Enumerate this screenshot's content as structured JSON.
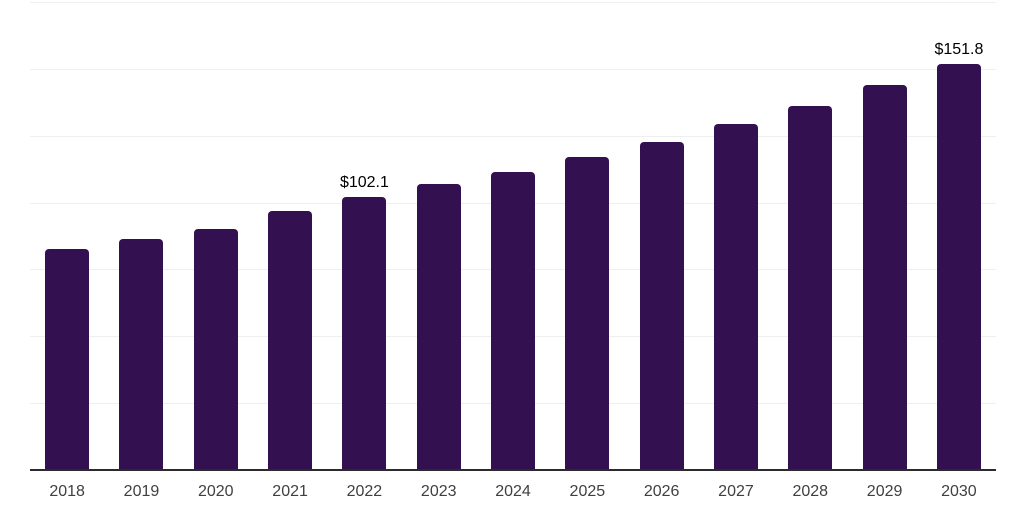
{
  "chart_data": {
    "type": "bar",
    "title": "",
    "xlabel": "",
    "ylabel": "",
    "categories": [
      "2018",
      "2019",
      "2020",
      "2021",
      "2022",
      "2023",
      "2024",
      "2025",
      "2026",
      "2027",
      "2028",
      "2029",
      "2030"
    ],
    "values": [
      82.6,
      86.2,
      90.3,
      96.7,
      102.1,
      106.8,
      111.4,
      117.0,
      122.8,
      129.5,
      136.3,
      143.8,
      151.8
    ],
    "value_labels": {
      "2022": "$102.1",
      "2030": "$151.8"
    },
    "ylim": [
      0,
      175
    ],
    "gridline_step": 25,
    "grid": true,
    "legend": false,
    "y_axis_labels_visible": false,
    "bar_color": "#331150",
    "axis_line_color": "#2b2b2b",
    "gridline_color": "#efefef",
    "value_label_color": "#000000",
    "tick_label_color": "#3f3f3f",
    "background_color": "#ffffff"
  }
}
